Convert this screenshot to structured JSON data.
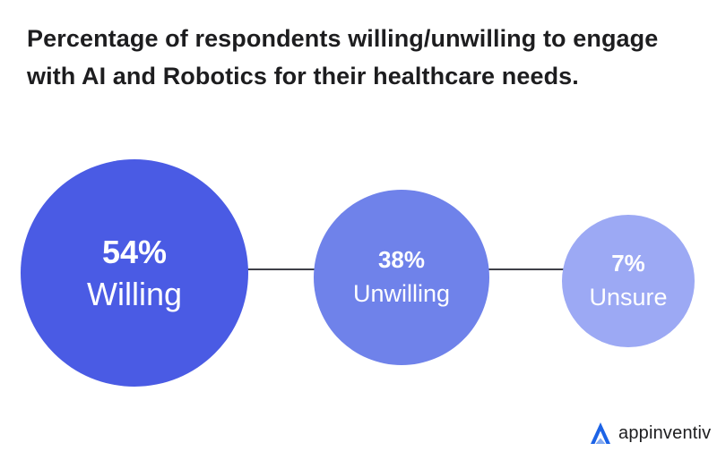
{
  "title": "Percentage of respondents willing/unwilling to engage with AI and Robotics for their healthcare needs.",
  "chart_data": {
    "type": "bubble",
    "title": "Percentage of respondents willing/unwilling to engage with AI and Robotics for their healthcare needs.",
    "unit": "%",
    "categories": [
      "Willing",
      "Unwilling",
      "Unsure"
    ],
    "values": [
      54,
      38,
      7
    ],
    "data_labels": [
      "54%",
      "38%",
      "7%"
    ],
    "colors": [
      "#4a5be4",
      "#6f82ea",
      "#9ca9f4"
    ],
    "connector_color": "#3f4048"
  },
  "brand": {
    "name": "appinventiv",
    "mark_color": "#1c63e6"
  }
}
